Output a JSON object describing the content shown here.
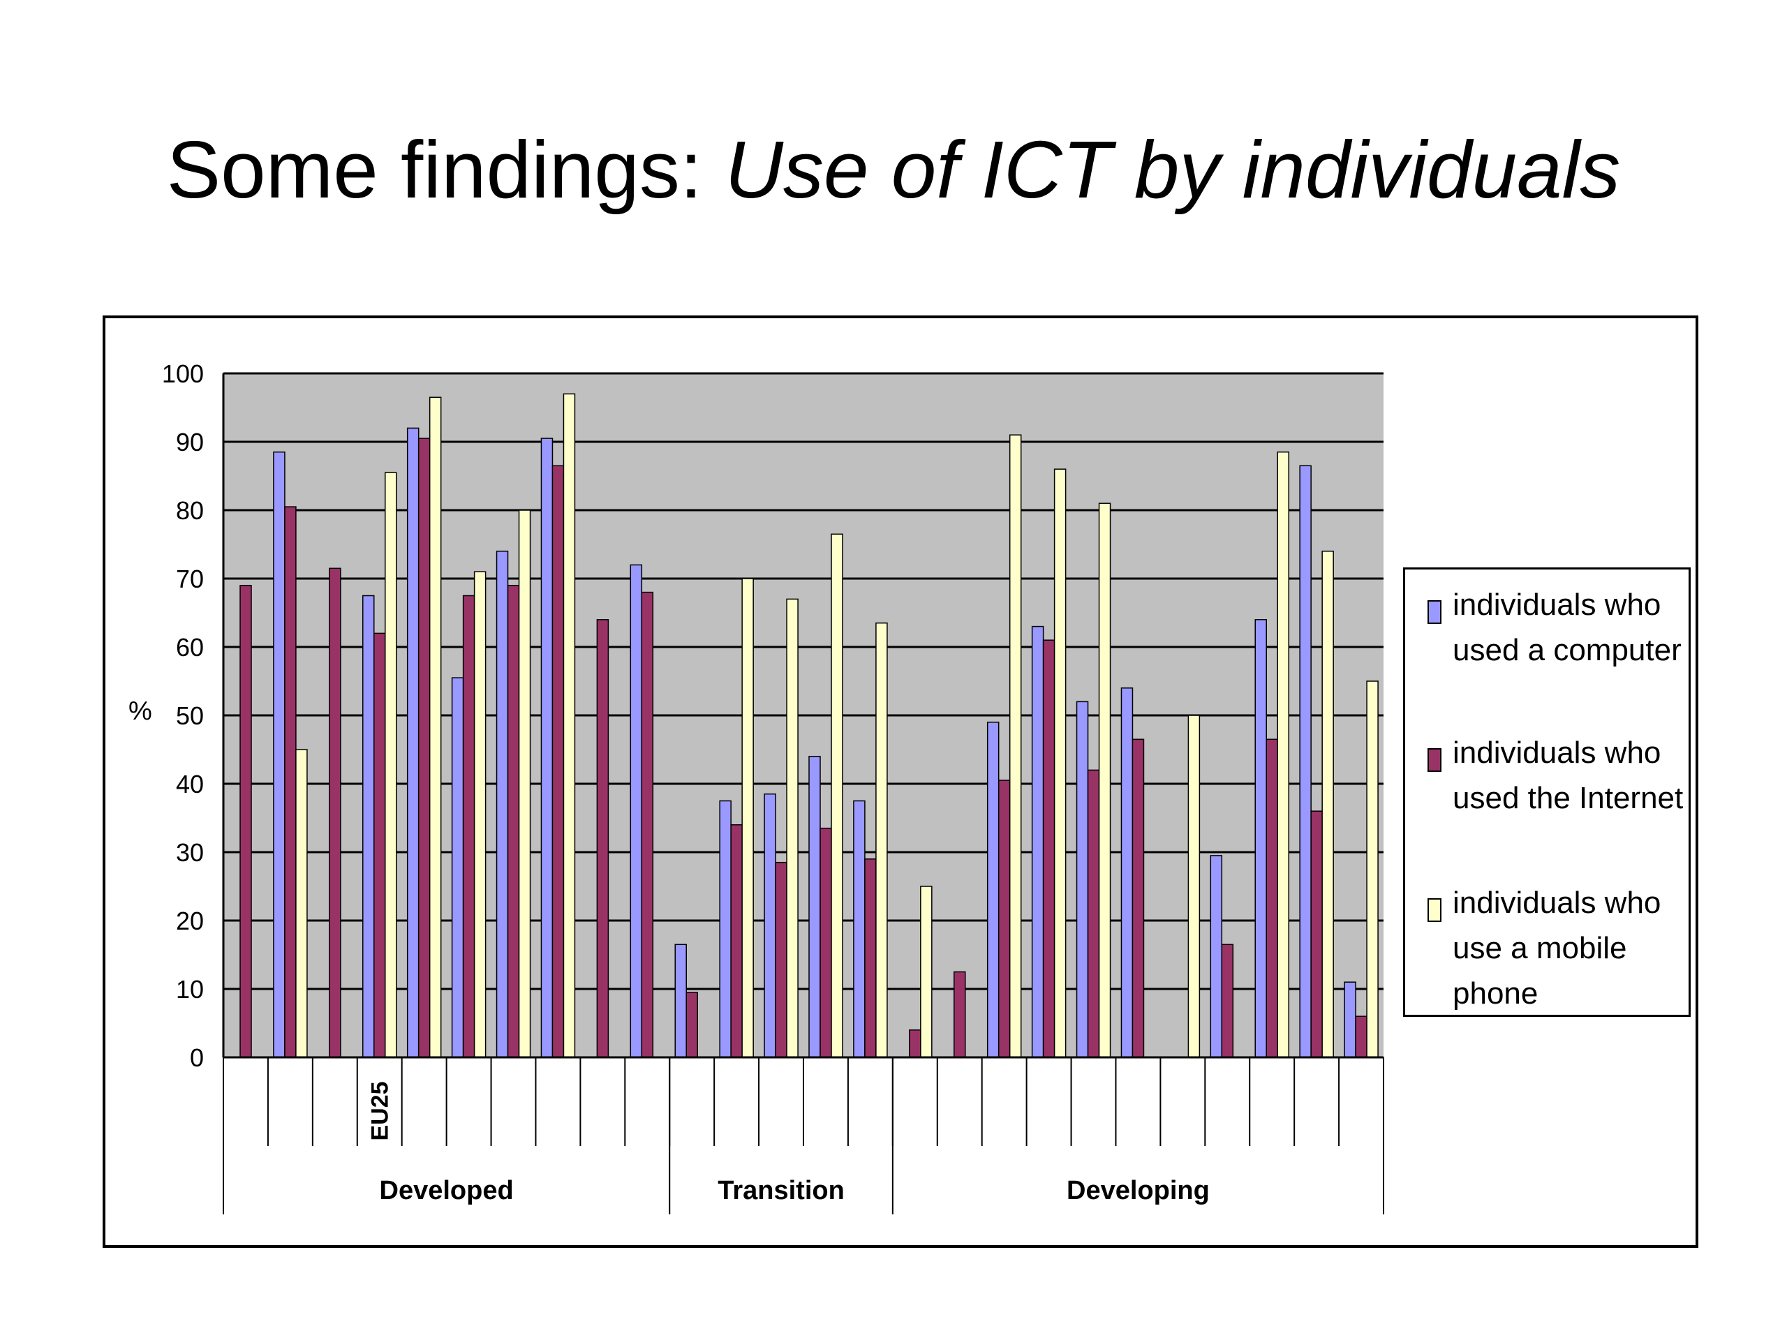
{
  "title": {
    "plain": "Some findings: ",
    "italic": "Use of ICT by individuals"
  },
  "colors": {
    "computer": "#9999ff",
    "internet": "#993366",
    "mobile": "#ffffcc",
    "plot_background": "#c0c0c0"
  },
  "chart_data": {
    "type": "bar",
    "ylabel": "%",
    "ylim": [
      0,
      100
    ],
    "yticks": [
      0,
      10,
      20,
      30,
      40,
      50,
      60,
      70,
      80,
      90,
      100
    ],
    "grid": true,
    "legend_position": "right",
    "categories": [
      "",
      "",
      "",
      "EU25",
      "",
      "",
      "",
      "",
      "",
      "",
      "",
      "",
      "",
      "",
      "",
      "",
      "",
      "",
      "",
      "",
      "",
      "",
      "",
      "",
      "",
      ""
    ],
    "groups": [
      {
        "label": "Developed",
        "start": 0,
        "count": 10
      },
      {
        "label": "Transition",
        "start": 10,
        "count": 5
      },
      {
        "label": "Developing",
        "start": 15,
        "count": 11
      }
    ],
    "series": [
      {
        "name": "individuals who used a computer",
        "color": "#9999ff",
        "values": [
          null,
          88.5,
          null,
          67.5,
          92,
          55.5,
          74,
          90.5,
          null,
          72,
          16.5,
          37.5,
          38.5,
          44,
          37.5,
          null,
          null,
          49,
          63,
          52,
          54,
          null,
          29.5,
          64,
          86.5,
          11
        ]
      },
      {
        "name": "individuals who used the Internet",
        "color": "#993366",
        "values": [
          69,
          80.5,
          71.5,
          62,
          90.5,
          67.5,
          69,
          86.5,
          64,
          68,
          9.5,
          34,
          28.5,
          33.5,
          29,
          4,
          12.5,
          40.5,
          61,
          42,
          46.5,
          null,
          16.5,
          46.5,
          36,
          6
        ]
      },
      {
        "name": "individuals who use a mobile phone",
        "color": "#ffffcc",
        "values": [
          null,
          45,
          null,
          85.5,
          96.5,
          71,
          80,
          97,
          null,
          null,
          null,
          70,
          67,
          76.5,
          63.5,
          25,
          null,
          91,
          86,
          81,
          null,
          50,
          null,
          88.5,
          74,
          55
        ]
      }
    ]
  },
  "legend": {
    "items": [
      {
        "text": "individuals who used a computer",
        "color": "#9999ff"
      },
      {
        "text": "individuals who used the Internet",
        "color": "#993366"
      },
      {
        "text": "individuals who use a mobile phone",
        "color": "#ffffcc"
      }
    ]
  }
}
